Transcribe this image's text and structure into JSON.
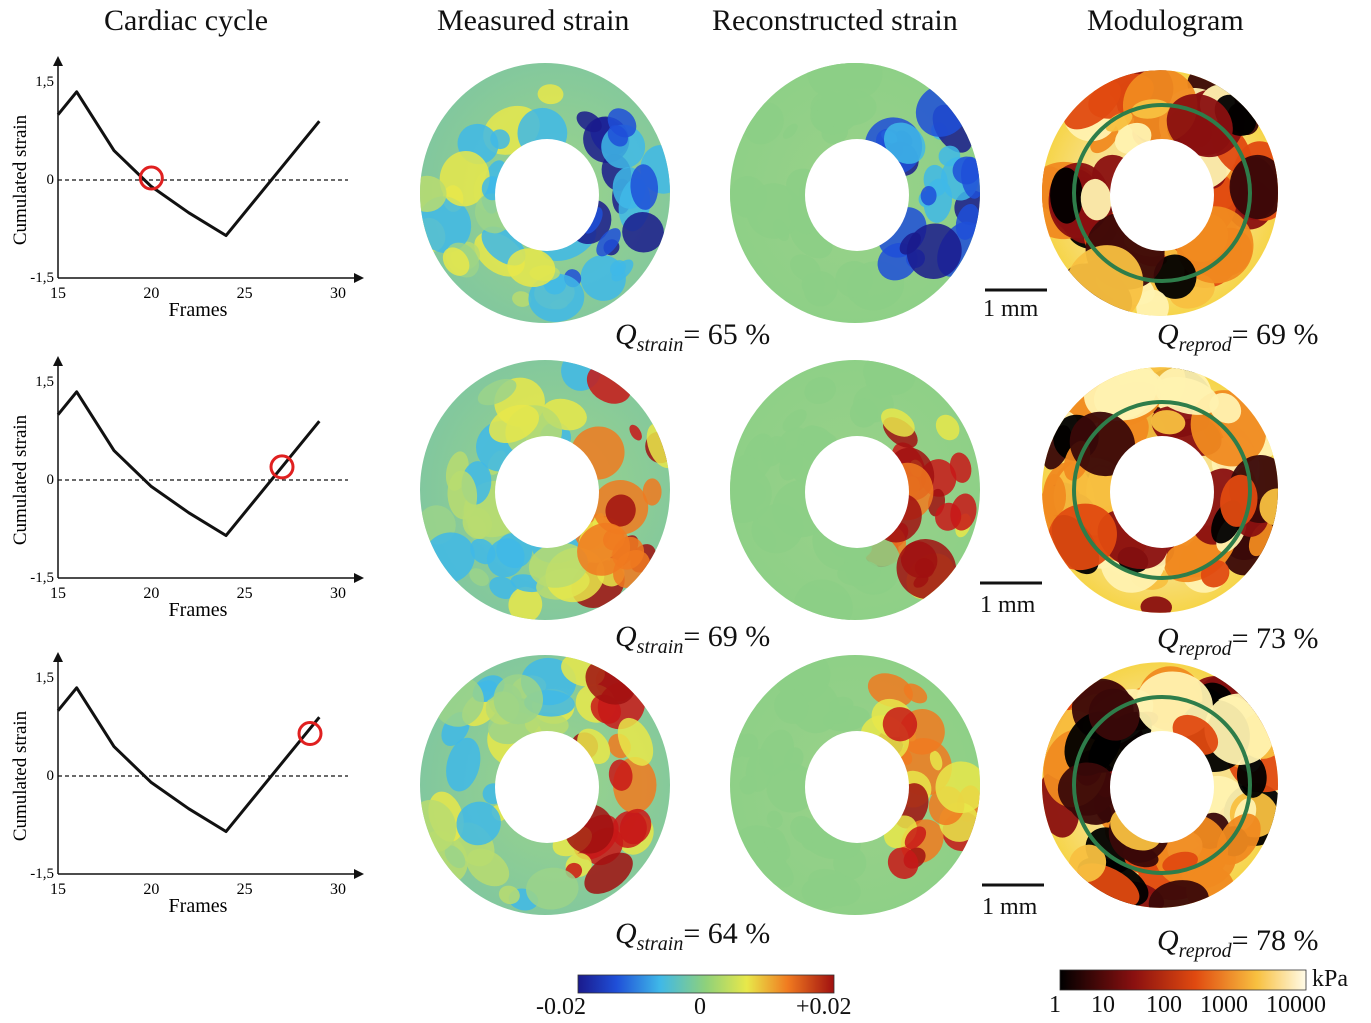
{
  "titles": {
    "cardiac": "Cardiac cycle",
    "measured": "Measured strain",
    "reconstructed": "Reconstructed strain",
    "modulogram": "Modulogram"
  },
  "plot": {
    "ylabel": "Cumulated strain",
    "xlabel": "Frames",
    "yticks": [
      "1,5",
      "0",
      "-1,5"
    ],
    "xticks": [
      "15",
      "20",
      "25",
      "30"
    ]
  },
  "chart_data": [
    {
      "type": "line",
      "xlabel": "Frames",
      "ylabel": "Cumulated strain",
      "xlim": [
        15,
        30
      ],
      "ylim": [
        -1.5,
        1.5
      ],
      "x": [
        15,
        16,
        18,
        20,
        22,
        24,
        26,
        28,
        29
      ],
      "y": [
        1.0,
        1.35,
        0.45,
        -0.1,
        -0.5,
        -0.85,
        -0.15,
        0.55,
        0.9
      ],
      "marker": {
        "x": 20,
        "y": 0.03
      }
    },
    {
      "type": "line",
      "xlabel": "Frames",
      "ylabel": "Cumulated strain",
      "xlim": [
        15,
        30
      ],
      "ylim": [
        -1.5,
        1.5
      ],
      "x": [
        15,
        16,
        18,
        20,
        22,
        24,
        26,
        28,
        29
      ],
      "y": [
        1.0,
        1.35,
        0.45,
        -0.1,
        -0.5,
        -0.85,
        -0.15,
        0.55,
        0.9
      ],
      "marker": {
        "x": 27,
        "y": 0.2
      }
    },
    {
      "type": "line",
      "xlabel": "Frames",
      "ylabel": "Cumulated strain",
      "xlim": [
        15,
        30
      ],
      "ylim": [
        -1.5,
        1.5
      ],
      "x": [
        15,
        16,
        18,
        20,
        22,
        24,
        26,
        28,
        29
      ],
      "y": [
        1.0,
        1.35,
        0.45,
        -0.1,
        -0.5,
        -0.85,
        -0.15,
        0.55,
        0.9
      ],
      "marker": {
        "x": 28.5,
        "y": 0.65
      }
    }
  ],
  "rows": [
    {
      "q_strain": "= 65 %",
      "q_reprod": "= 69 %",
      "scale": "1 mm"
    },
    {
      "q_strain": "= 69 %",
      "q_reprod": "= 73 %",
      "scale": "1 mm"
    },
    {
      "q_strain": "= 64 %",
      "q_reprod": "= 78 %",
      "scale": "1 mm"
    }
  ],
  "q_symbol": "Q",
  "q_strain_sub": "strain",
  "q_reprod_sub": "reprod",
  "colorbar_strain": {
    "labels": [
      "-0.02",
      "0",
      "+0.02"
    ]
  },
  "colorbar_modulus": {
    "labels": [
      "1",
      "10",
      "100",
      "1000",
      "10000"
    ],
    "unit": "kPa"
  },
  "colors": {
    "curve": "#111111",
    "marker": "#e02020",
    "circle": "#2e7d4a"
  }
}
